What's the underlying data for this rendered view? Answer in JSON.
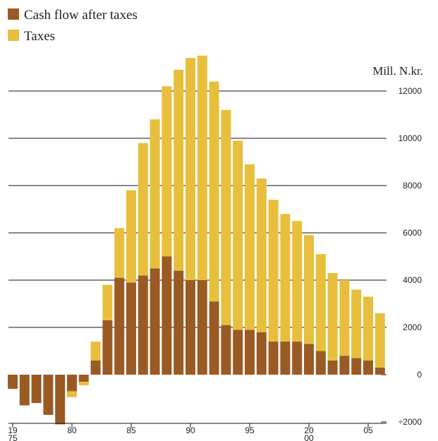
{
  "chart_data": {
    "type": "bar",
    "stacked": true,
    "unit_label": "Mill. N.kr.",
    "x": [
      1975,
      1976,
      1977,
      1978,
      1979,
      1980,
      1981,
      1982,
      1983,
      1984,
      1985,
      1986,
      1987,
      1988,
      1989,
      1990,
      1991,
      1992,
      1993,
      1994,
      1995,
      1996,
      1997,
      1998,
      1999,
      2000,
      2001,
      2002,
      2003,
      2004,
      2005,
      2006
    ],
    "x_tick_labels": [
      "19\n75",
      "80",
      "85",
      "90",
      "95",
      "20\n00",
      "05"
    ],
    "x_tick_values": [
      1975,
      1980,
      1985,
      1990,
      1995,
      2000,
      2005
    ],
    "y_tick_labels": [
      "÷2000",
      "0",
      "2000",
      "4000",
      "6000",
      "8000",
      "10000",
      "12000"
    ],
    "y_tick_values": [
      -2000,
      0,
      2000,
      4000,
      6000,
      8000,
      10000,
      12000
    ],
    "ylim": [
      -2000,
      13400
    ],
    "legend_position": "top-left",
    "grid": true,
    "series": [
      {
        "name": "Cash flow after taxes",
        "color": "#9b5a24",
        "values": [
          -600,
          -1300,
          -1200,
          -1700,
          -2100,
          -700,
          -300,
          600,
          2300,
          4100,
          3900,
          4200,
          4500,
          5000,
          4400,
          4000,
          4000,
          3100,
          2100,
          1900,
          1900,
          1800,
          1400,
          1400,
          1400,
          1300,
          1000,
          600,
          800,
          700,
          600,
          300
        ]
      },
      {
        "name": "Taxes",
        "color": "#e8bf3c",
        "values": [
          0,
          0,
          0,
          0,
          0,
          -250,
          -150,
          800,
          1500,
          2100,
          3900,
          5600,
          6300,
          7200,
          8500,
          9400,
          9500,
          9300,
          9100,
          8000,
          7000,
          6500,
          6000,
          5400,
          5100,
          4600,
          4100,
          3700,
          3200,
          2900,
          2700,
          2300
        ]
      }
    ]
  }
}
